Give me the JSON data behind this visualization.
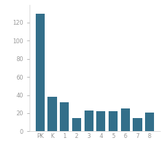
{
  "categories": [
    "PK",
    "K",
    "1",
    "2",
    "3",
    "4",
    "5",
    "6",
    "7",
    "8"
  ],
  "values": [
    130,
    38,
    32,
    15,
    23,
    22,
    22,
    25,
    15,
    21
  ],
  "bar_color": "#336f8a",
  "ylim": [
    0,
    140
  ],
  "yticks": [
    0,
    20,
    40,
    60,
    80,
    100,
    120
  ],
  "background_color": "#ffffff",
  "tick_label_color": "#999999",
  "bar_width": 0.75,
  "figsize": [
    2.4,
    2.2
  ],
  "dpi": 100
}
